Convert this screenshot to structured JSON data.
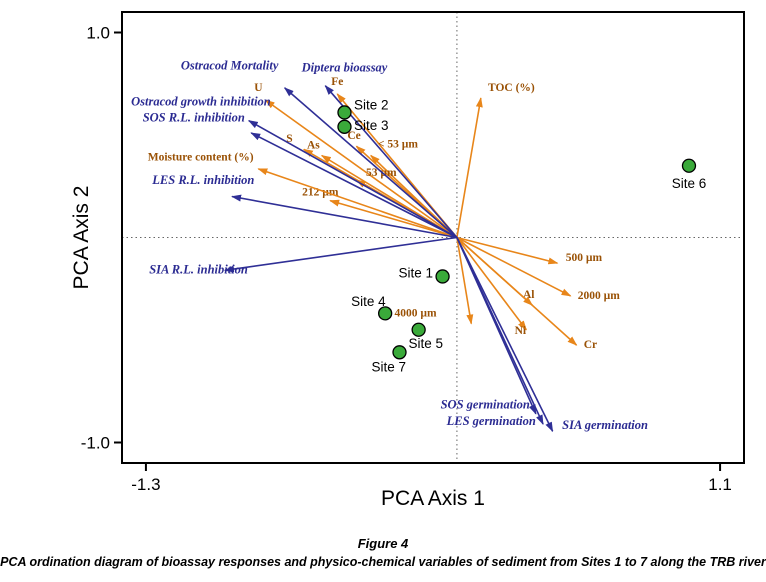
{
  "figure": {
    "number": "Figure 4",
    "caption": "PCA ordination diagram of bioassay responses and physico-chemical variables of sediment from Sites 1 to 7 along the TRB river"
  },
  "chart_data": {
    "type": "scatter",
    "subtype": "pca-biplot",
    "title": "",
    "xlabel": "PCA Axis 1",
    "ylabel": "PCA Axis 2",
    "xlim": [
      -1.3,
      1.1
    ],
    "ylim": [
      -1.0,
      1.0
    ],
    "frame_xlim": [
      -1.4,
      1.2
    ],
    "frame_ylim": [
      -1.1,
      1.1
    ],
    "grid": "dotted-zero-lines",
    "legend": "none",
    "x_ticks": [
      {
        "v": -1.3,
        "label": "-1.3"
      },
      {
        "v": 1.1,
        "label": "1.1"
      }
    ],
    "y_ticks": [
      {
        "v": 1.0,
        "label": "1.0"
      },
      {
        "v": -1.0,
        "label": "-1.0"
      }
    ],
    "colors": {
      "bioassay_arrow": "#2f2f96",
      "bioassay_label": "#2b2b92",
      "physico_arrow": "#e8861a",
      "physico_label": "#9a5206",
      "site_fill": "#3aaa3a",
      "site_stroke": "#000000",
      "frame": "#000000",
      "zero_line": "#666666"
    },
    "bioassay_vectors": [
      {
        "label": "Ostracod Mortality",
        "x": -0.72,
        "y": 0.73,
        "lx": -0.95,
        "ly": 0.82,
        "anchor": "middle"
      },
      {
        "label": "Diptera bioassay",
        "x": -0.55,
        "y": 0.74,
        "lx": -0.47,
        "ly": 0.81,
        "anchor": "middle"
      },
      {
        "label": "Ostracod growth inhibition",
        "x": -0.87,
        "y": 0.57,
        "lx": -1.07,
        "ly": 0.645,
        "anchor": "middle"
      },
      {
        "label": "SOS R.L. inhibition",
        "x": -0.86,
        "y": 0.51,
        "lx": -1.1,
        "ly": 0.565,
        "anchor": "middle"
      },
      {
        "label": "LES R.L. inhibition",
        "x": -0.94,
        "y": 0.2,
        "lx": -1.06,
        "ly": 0.26,
        "anchor": "middle"
      },
      {
        "label": "SIA R.L. inhibition",
        "x": -0.97,
        "y": -0.16,
        "lx": -1.08,
        "ly": -0.175,
        "anchor": "middle"
      },
      {
        "label": "SOS germination",
        "x": 0.33,
        "y": -0.86,
        "lx": 0.305,
        "ly": -0.835,
        "anchor": "end"
      },
      {
        "label": "LES germination",
        "x": 0.36,
        "y": -0.91,
        "lx": 0.33,
        "ly": -0.915,
        "anchor": "end"
      },
      {
        "label": "SIA germination",
        "x": 0.4,
        "y": -0.945,
        "lx": 0.44,
        "ly": -0.935,
        "anchor": "start"
      }
    ],
    "physico_vectors": [
      {
        "label": "TOC (%)",
        "x": 0.1,
        "y": 0.68,
        "lx": 0.13,
        "ly": 0.715,
        "anchor": "start"
      },
      {
        "label": "Fe",
        "x": -0.5,
        "y": 0.7,
        "lx": -0.5,
        "ly": 0.745,
        "anchor": "middle"
      },
      {
        "label": "U",
        "x": -0.8,
        "y": 0.67,
        "lx": -0.83,
        "ly": 0.715,
        "anchor": "middle"
      },
      {
        "label": "S",
        "x": -0.64,
        "y": 0.43,
        "lx": -0.7,
        "ly": 0.465,
        "anchor": "middle"
      },
      {
        "label": "As",
        "x": -0.565,
        "y": 0.4,
        "lx": -0.6,
        "ly": 0.435,
        "anchor": "middle"
      },
      {
        "label": "Ce",
        "x": -0.42,
        "y": 0.445,
        "lx": -0.43,
        "ly": 0.48,
        "anchor": "middle"
      },
      {
        "label": "< 53 µm",
        "x": -0.36,
        "y": 0.4,
        "lx": -0.33,
        "ly": 0.44,
        "anchor": "start"
      },
      {
        "label": "53 µm",
        "x": -0.42,
        "y": 0.28,
        "lx": -0.38,
        "ly": 0.3,
        "anchor": "start"
      },
      {
        "label": "212 µm",
        "x": -0.53,
        "y": 0.18,
        "lx": -0.495,
        "ly": 0.205,
        "anchor": "end"
      },
      {
        "label": "Moisture content (%)",
        "x": -0.83,
        "y": 0.335,
        "lx": -0.85,
        "ly": 0.375,
        "anchor": "end"
      },
      {
        "label": "500 µm",
        "x": 0.42,
        "y": -0.125,
        "lx": 0.455,
        "ly": -0.115,
        "anchor": "start"
      },
      {
        "label": "2000 µm",
        "x": 0.475,
        "y": -0.285,
        "lx": 0.505,
        "ly": -0.3,
        "anchor": "start"
      },
      {
        "label": "Al",
        "x": 0.315,
        "y": -0.33,
        "lx": 0.3,
        "ly": -0.295,
        "anchor": "middle"
      },
      {
        "label": "Ni",
        "x": 0.29,
        "y": -0.45,
        "lx": 0.265,
        "ly": -0.47,
        "anchor": "middle"
      },
      {
        "label": "Cr",
        "x": 0.5,
        "y": -0.525,
        "lx": 0.53,
        "ly": -0.54,
        "anchor": "start"
      },
      {
        "label": "4000 µm",
        "x": 0.06,
        "y": -0.42,
        "lx": -0.085,
        "ly": -0.385,
        "anchor": "end"
      }
    ],
    "sites": [
      {
        "name": "Site 1",
        "x": -0.06,
        "y": -0.19,
        "lx": -0.1,
        "ly": -0.175,
        "anchor": "end"
      },
      {
        "name": "Site 2",
        "x": -0.47,
        "y": 0.61,
        "lx": -0.43,
        "ly": 0.645,
        "anchor": "start"
      },
      {
        "name": "Site 3",
        "x": -0.47,
        "y": 0.54,
        "lx": -0.43,
        "ly": 0.545,
        "anchor": "start"
      },
      {
        "name": "Site 4",
        "x": -0.3,
        "y": -0.37,
        "lx": -0.37,
        "ly": -0.315,
        "anchor": "middle"
      },
      {
        "name": "Site 5",
        "x": -0.16,
        "y": -0.45,
        "lx": -0.13,
        "ly": -0.52,
        "anchor": "middle"
      },
      {
        "name": "Site 6",
        "x": 0.97,
        "y": 0.35,
        "lx": 0.97,
        "ly": 0.26,
        "anchor": "middle"
      },
      {
        "name": "Site 7",
        "x": -0.24,
        "y": -0.56,
        "lx": -0.285,
        "ly": -0.635,
        "anchor": "middle"
      }
    ]
  }
}
